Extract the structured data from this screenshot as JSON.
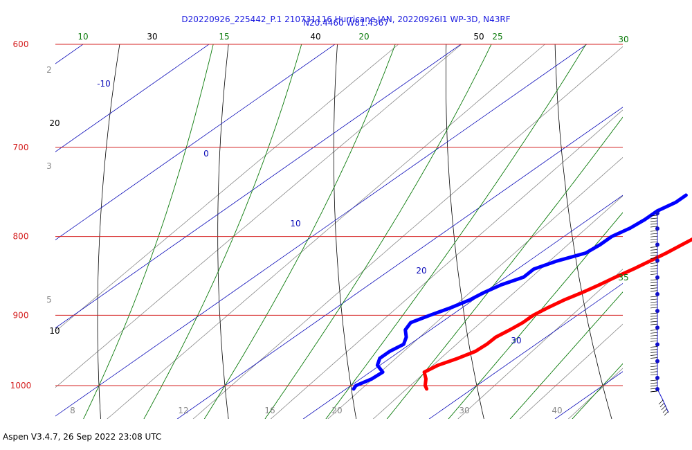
{
  "header": {
    "title_line1": "D20220926_225442_P.1 210731116 Hurricane IAN, 20220926I1 WP-3D, N43RF",
    "title_line2": "N20.4460 W81.4367"
  },
  "footer": {
    "text": "Aspen V3.4.7, 26 Sep 2022  23:08 UTC"
  },
  "colors": {
    "isobar": "#d42020",
    "isotherm": "#0a0ab8",
    "dry_adiabat": "#000000",
    "moist_adiabat": "#0a7a0a",
    "mixing_ratio": "#888888",
    "temperature": "#ff0000",
    "dewpoint": "#0000ff",
    "title": "#1a1adf",
    "barb": "#1010cc"
  },
  "chart_data": {
    "type": "skew-t",
    "y_axis": {
      "scale": "log",
      "range_hPa": [
        1035,
        600
      ],
      "ticks": [
        600,
        700,
        800,
        900,
        1000
      ]
    },
    "isotherm_labels": [
      -10,
      0,
      10,
      20,
      30
    ],
    "dry_adiabat_labels": [
      10,
      20,
      30,
      40,
      50
    ],
    "moist_adiabat_labels": [
      10,
      15,
      20,
      25,
      30,
      35
    ],
    "mixing_ratio_labels": [
      "2",
      "3",
      "5",
      "8",
      "12",
      "16",
      "20",
      "30",
      "40"
    ],
    "temperature_profile": [
      {
        "p": 1005,
        "t": 26.4
      },
      {
        "p": 1000,
        "t": 25.9
      },
      {
        "p": 990,
        "t": 25.2
      },
      {
        "p": 980,
        "t": 24.3
      },
      {
        "p": 970,
        "t": 24.6
      },
      {
        "p": 960,
        "t": 25.4
      },
      {
        "p": 950,
        "t": 26.0
      },
      {
        "p": 940,
        "t": 26.1
      },
      {
        "p": 930,
        "t": 26.0
      },
      {
        "p": 920,
        "t": 26.3
      },
      {
        "p": 910,
        "t": 26.5
      },
      {
        "p": 900,
        "t": 26.5
      },
      {
        "p": 890,
        "t": 26.8
      },
      {
        "p": 880,
        "t": 27.2
      },
      {
        "p": 870,
        "t": 27.8
      },
      {
        "p": 860,
        "t": 28.3
      },
      {
        "p": 850,
        "t": 28.7
      },
      {
        "p": 840,
        "t": 29.2
      },
      {
        "p": 830,
        "t": 29.6
      },
      {
        "p": 820,
        "t": 30.0
      },
      {
        "p": 810,
        "t": 30.3
      },
      {
        "p": 800,
        "t": 30.6
      },
      {
        "p": 790,
        "t": 31.0
      },
      {
        "p": 780,
        "t": 31.5
      },
      {
        "p": 770,
        "t": 31.8
      },
      {
        "p": 760,
        "t": 32.2
      },
      {
        "p": 755,
        "t": 32.6
      },
      {
        "p": 752,
        "t": 33.3
      }
    ],
    "dewpoint_profile": [
      {
        "p": 1005,
        "t": 20.6
      },
      {
        "p": 1000,
        "t": 20.4
      },
      {
        "p": 990,
        "t": 20.9
      },
      {
        "p": 980,
        "t": 21.0
      },
      {
        "p": 970,
        "t": 19.8
      },
      {
        "p": 960,
        "t": 19.2
      },
      {
        "p": 950,
        "t": 19.2
      },
      {
        "p": 940,
        "t": 19.5
      },
      {
        "p": 930,
        "t": 18.9
      },
      {
        "p": 920,
        "t": 18.0
      },
      {
        "p": 910,
        "t": 17.6
      },
      {
        "p": 900,
        "t": 18.3
      },
      {
        "p": 890,
        "t": 19.1
      },
      {
        "p": 880,
        "t": 19.7
      },
      {
        "p": 870,
        "t": 20.0
      },
      {
        "p": 860,
        "t": 20.5
      },
      {
        "p": 850,
        "t": 21.4
      },
      {
        "p": 840,
        "t": 21.3
      },
      {
        "p": 830,
        "t": 22.2
      },
      {
        "p": 820,
        "t": 23.6
      },
      {
        "p": 810,
        "t": 23.8
      },
      {
        "p": 800,
        "t": 23.8
      },
      {
        "p": 790,
        "t": 24.3
      },
      {
        "p": 780,
        "t": 24.5
      },
      {
        "p": 770,
        "t": 24.5
      },
      {
        "p": 760,
        "t": 25.0
      },
      {
        "p": 752,
        "t": 25.0
      }
    ],
    "wind_barbs_hPa": [
      760,
      782,
      805,
      828,
      852,
      876,
      900,
      924,
      948,
      972,
      996,
      1012
    ]
  }
}
